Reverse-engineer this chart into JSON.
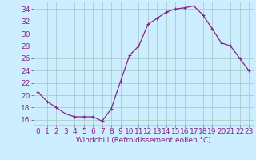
{
  "hours": [
    0,
    1,
    2,
    3,
    4,
    5,
    6,
    7,
    8,
    9,
    10,
    11,
    12,
    13,
    14,
    15,
    16,
    17,
    18,
    19,
    20,
    21,
    22,
    23
  ],
  "values": [
    20.5,
    19.0,
    18.0,
    17.0,
    16.5,
    16.5,
    16.5,
    15.8,
    17.8,
    22.2,
    26.5,
    28.0,
    31.5,
    32.5,
    33.5,
    34.0,
    34.2,
    34.5,
    33.0,
    30.8,
    28.5,
    28.0,
    26.0,
    24.0
  ],
  "line_color": "#882288",
  "marker": "+",
  "bg_color": "#cceeff",
  "grid_color": "#aacccc",
  "xlabel": "Windchill (Refroidissement éolien,°C)",
  "ylabel_ticks": [
    16,
    18,
    20,
    22,
    24,
    26,
    28,
    30,
    32,
    34
  ],
  "xlim": [
    -0.5,
    23.5
  ],
  "ylim": [
    15.2,
    35.2
  ],
  "xlabel_color": "#882288",
  "xlabel_fontsize": 6.5,
  "tick_fontsize": 6.5,
  "tick_color": "#882288",
  "markersize": 3,
  "linewidth": 0.9
}
